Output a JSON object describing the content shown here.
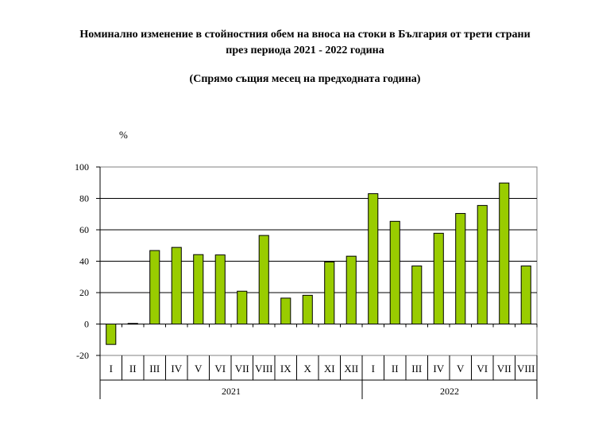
{
  "chart_data": {
    "type": "bar",
    "title": "Номинално изменение в стойностния обем на вноса на стоки в България от трети страни",
    "title_line2": "през периода 2021 - 2022 година",
    "subtitle": "(Спрямо същия месец на предходната година)",
    "ylabel": "%",
    "xlabel": "",
    "ylim": [
      -20,
      100
    ],
    "yticks": [
      -20,
      0,
      20,
      40,
      60,
      80,
      100
    ],
    "grid": true,
    "legend": "none",
    "bar_color": "#99cc00",
    "categories": [
      "I",
      "II",
      "III",
      "IV",
      "V",
      "VI",
      "VII",
      "VIII",
      "IX",
      "X",
      "XI",
      "XII",
      "I",
      "II",
      "III",
      "IV",
      "V",
      "VI",
      "VII",
      "VIII"
    ],
    "groups": [
      {
        "label": "2021",
        "count": 12
      },
      {
        "label": "2022",
        "count": 8
      }
    ],
    "values": [
      -13.0,
      0.4,
      46.8,
      48.8,
      44.2,
      44.0,
      20.9,
      56.4,
      16.5,
      18.3,
      39.5,
      43.2,
      83.0,
      65.4,
      37.0,
      57.8,
      70.4,
      75.5,
      89.8,
      37.0
    ]
  }
}
